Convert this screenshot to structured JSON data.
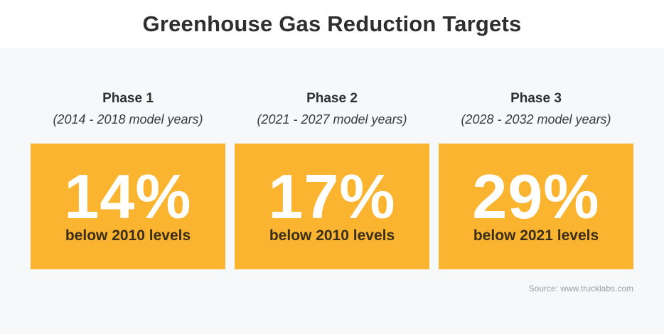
{
  "title": "Greenhouse Gas Reduction Targets",
  "phases": [
    {
      "name": "Phase 1",
      "years": "(2014 - 2018 model years)",
      "percent": "14%",
      "caption": "below 2010 levels"
    },
    {
      "name": "Phase 2",
      "years": "(2021 - 2027 model years)",
      "percent": "17%",
      "caption": "below 2010 levels"
    },
    {
      "name": "Phase 3",
      "years": "(2028 - 2032 model years)",
      "percent": "29%",
      "caption": "below 2021 levels"
    }
  ],
  "source": "Source: www.trucklabs.com",
  "colors": {
    "accent": "#fbb42f",
    "panel": "#f7f8f9",
    "heading": "#2f2f2f"
  }
}
